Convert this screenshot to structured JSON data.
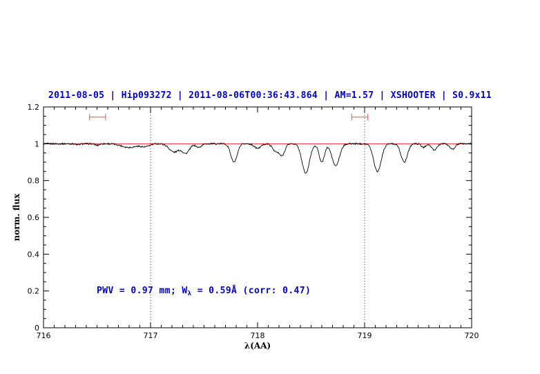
{
  "page": {
    "background": "#ffffff"
  },
  "title": {
    "text": "2011-08-05 | Hip093272 | 2011-08-06T00:36:43.864 | AM=1.57 | XSHOOTER | S0.9x11",
    "color": "#0000cd"
  },
  "annotation": {
    "prefix": "PWV = 0.97 mm; W",
    "sub": "λ",
    "suffix": " = 0.59Å (corr: 0.47)",
    "color": "#0000cd"
  },
  "chart_data": {
    "type": "line",
    "title": "2011-08-05 | Hip093272 | 2011-08-06T00:36:43.864 | AM=1.57 | XSHOOTER | S0.9x11",
    "xlabel": "λ(AA)",
    "ylabel": "norm. flux",
    "xlim": [
      716,
      720
    ],
    "ylim": [
      0,
      1.2
    ],
    "grid": false,
    "x_major_ticks": [
      716,
      717,
      718,
      719,
      720
    ],
    "x_tick_labels": [
      "716",
      "717",
      "718",
      "719",
      "720"
    ],
    "x_minor_step": 0.1,
    "y_major_ticks": [
      0,
      0.2,
      0.4,
      0.6,
      0.8,
      1,
      1.2
    ],
    "y_tick_labels": [
      "0",
      "0.2",
      "0.4",
      "0.6",
      "0.8",
      "1",
      "1.2"
    ],
    "y_minor_step": 0.05,
    "continuum_line": {
      "y": 1.0,
      "color": "#ff0000"
    },
    "dotted_vlines": {
      "x": [
        717,
        719
      ],
      "color": "#000000",
      "style": "dotted"
    },
    "interval_markers": {
      "color": "#dd6666",
      "y": 1.145,
      "cap_halfheight": 0.018,
      "spans": [
        [
          716.43,
          716.58
        ],
        [
          718.88,
          719.03
        ]
      ]
    },
    "spectrum": {
      "color": "#000000",
      "continuum_level": 1.0,
      "noise_amplitude": 0.004,
      "sample_step": 0.005,
      "absorption_lines": [
        {
          "center": 716.32,
          "depth": 0.006,
          "sigma": 0.02
        },
        {
          "center": 716.5,
          "depth": 0.008,
          "sigma": 0.02
        },
        {
          "center": 716.8,
          "depth": 0.02,
          "sigma": 0.07
        },
        {
          "center": 716.95,
          "depth": 0.015,
          "sigma": 0.04
        },
        {
          "center": 717.22,
          "depth": 0.045,
          "sigma": 0.045
        },
        {
          "center": 717.33,
          "depth": 0.05,
          "sigma": 0.035
        },
        {
          "center": 717.45,
          "depth": 0.02,
          "sigma": 0.025
        },
        {
          "center": 717.78,
          "depth": 0.1,
          "sigma": 0.03
        },
        {
          "center": 718.0,
          "depth": 0.025,
          "sigma": 0.03
        },
        {
          "center": 718.17,
          "depth": 0.04,
          "sigma": 0.03
        },
        {
          "center": 718.23,
          "depth": 0.06,
          "sigma": 0.025
        },
        {
          "center": 718.45,
          "depth": 0.16,
          "sigma": 0.035
        },
        {
          "center": 718.6,
          "depth": 0.1,
          "sigma": 0.025
        },
        {
          "center": 718.73,
          "depth": 0.12,
          "sigma": 0.035
        },
        {
          "center": 719.12,
          "depth": 0.15,
          "sigma": 0.035
        },
        {
          "center": 719.37,
          "depth": 0.1,
          "sigma": 0.03
        },
        {
          "center": 719.55,
          "depth": 0.02,
          "sigma": 0.02
        },
        {
          "center": 719.65,
          "depth": 0.035,
          "sigma": 0.025
        },
        {
          "center": 719.82,
          "depth": 0.03,
          "sigma": 0.025
        }
      ],
      "key_features": [
        {
          "wavelength": 717.3,
          "min_flux": 0.945
        },
        {
          "wavelength": 717.78,
          "min_flux": 0.9
        },
        {
          "wavelength": 718.23,
          "min_flux": 0.93
        },
        {
          "wavelength": 718.45,
          "min_flux": 0.84
        },
        {
          "wavelength": 718.73,
          "min_flux": 0.88
        },
        {
          "wavelength": 719.12,
          "min_flux": 0.85
        },
        {
          "wavelength": 719.37,
          "min_flux": 0.9
        }
      ]
    }
  }
}
